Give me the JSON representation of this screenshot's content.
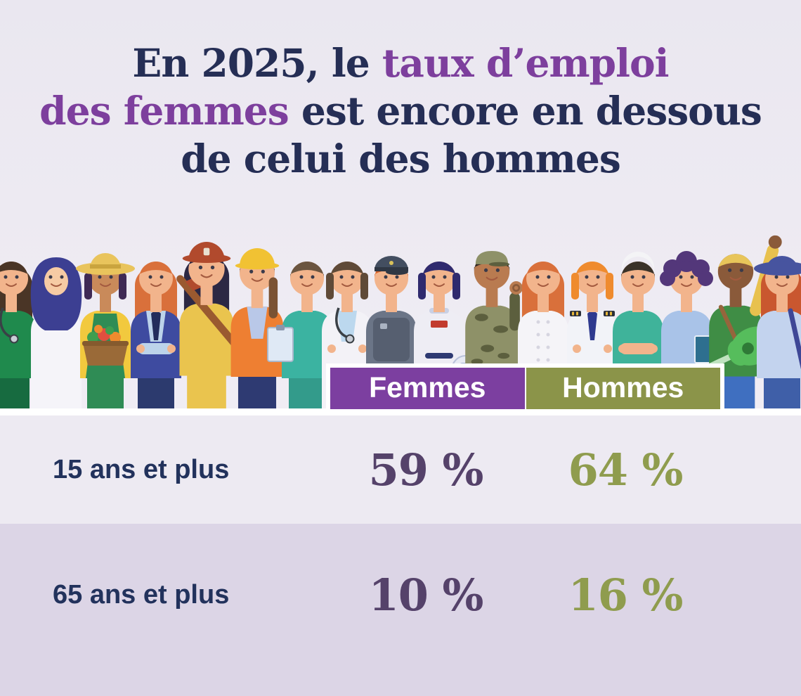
{
  "title": {
    "lines": [
      {
        "segments": [
          {
            "text": "En 2025, le ",
            "color": "navy"
          },
          {
            "text": "taux d’emploi",
            "color": "purple"
          }
        ]
      },
      {
        "segments": [
          {
            "text": "des femmes",
            "color": "purple"
          },
          {
            "text": " est encore en dessous",
            "color": "navy"
          }
        ]
      },
      {
        "segments": [
          {
            "text": "de celui des hommes",
            "color": "navy"
          }
        ]
      }
    ]
  },
  "legend": {
    "femmes": "Femmes",
    "hommes": "Hommes"
  },
  "table": {
    "rows": [
      {
        "label": "15 ans et plus",
        "femmes": "59 %",
        "hommes": "64 %"
      },
      {
        "label": "65 ans et plus",
        "femmes": "10 %",
        "hommes": "16 %"
      }
    ]
  },
  "chart_data": {
    "type": "table",
    "title": "En 2025, le taux d’emploi des femmes est encore en dessous de celui des hommes",
    "categories": [
      "15 ans et plus",
      "65 ans et plus"
    ],
    "series": [
      {
        "name": "Femmes",
        "values": [
          59,
          10
        ],
        "unit": "%",
        "color": "#7c3fa0"
      },
      {
        "name": "Hommes",
        "values": [
          64,
          16
        ],
        "unit": "%",
        "color": "#8b9449"
      }
    ],
    "legend_position": "top",
    "grid": false
  },
  "colors": {
    "navy": "#252e55",
    "purple": "#7d3f9d",
    "label": "#22325c",
    "femmes": "#7c3fa0",
    "hommes": "#8b9449",
    "val_femmes": "#55426a",
    "val_hommes": "#8f9c4e",
    "row1": "#edeaf2",
    "row2": "#dcd5e6",
    "page1": "#eae7f0",
    "floor": "#ffffff"
  },
  "illustration": {
    "description": "row of 17 workers of diverse professions standing side by side",
    "people": [
      {
        "profession": "veterinarian",
        "x": 16,
        "skin": "#f2b48c",
        "hair": "#4a3526",
        "hairstyle": "long",
        "top": "#1f8a4d",
        "pants": "#176b40",
        "props": [
          "stethoscope"
        ]
      },
      {
        "profession": "doctor-hijab",
        "x": 80,
        "skin": "#f6cba4",
        "hair": "#3c3f92",
        "hairstyle": "none",
        "top": "#f5f4f9",
        "pants": "#23262e",
        "torso": "coat",
        "hat": "hijab",
        "hatColor": "#3c3f92"
      },
      {
        "profession": "farmer",
        "x": 150,
        "skin": "#c98a5a",
        "hair": "#3f2a55",
        "hairstyle": "bob",
        "top": "#f2c93e",
        "pants": "#2f8c55",
        "hat": "straw",
        "hatColor": "#e9c45c",
        "apron": "#2f8c55",
        "props": [
          "basket"
        ]
      },
      {
        "profession": "security-agent",
        "x": 222,
        "skin": "#f2b48c",
        "hair": "#d9703b",
        "hairstyle": "long",
        "top": "#3e4ba0",
        "pants": "#2c3a6e",
        "shirt": "#bcd3ea",
        "sleeve": "#bcd3ea",
        "tie": "#232d5c",
        "props": [
          "tie",
          "crossedarms"
        ]
      },
      {
        "profession": "firefighter",
        "x": 294,
        "skin": "#f2b48c",
        "hair": "#2c2844",
        "hairstyle": "long",
        "top": "#eac44e",
        "pants": "#eac44e",
        "scale": 1.07,
        "hat": "firehelmet",
        "hatColor": "#b14a2d",
        "props": [
          "axe"
        ]
      },
      {
        "profession": "construction-worker",
        "x": 366,
        "skin": "#f2b48c",
        "hair": "#7a5233",
        "hairstyle": "ponytail",
        "top": "#ee7f32",
        "pants": "#2e3a72",
        "scale": 1.04,
        "hat": "hardhat",
        "hatColor": "#f1c233",
        "shirt": "#b9c8e8"
      },
      {
        "profession": "nurse",
        "x": 437,
        "skin": "#f2b48c",
        "hair": "#6b5540",
        "hairstyle": "short",
        "top": "#3bb3a1",
        "pants": "#339b8b",
        "props": [
          "clipboard"
        ]
      },
      {
        "profession": "doctor",
        "x": 494,
        "skin": "#f2b48c",
        "hair": "#5f4a38",
        "hairstyle": "bob",
        "top": "#f3f2f7",
        "pants": "#2e3a72",
        "torso": "coat",
        "shirt": "#bcd8ee",
        "sleeve": "#f3f2f7",
        "props": [
          "stethoscope",
          "crossedarms"
        ]
      },
      {
        "profession": "police-officer",
        "x": 557,
        "skin": "#f2b48c",
        "hair": "#d9632a",
        "hairstyle": "short",
        "top": "#6b7587",
        "pants": "#4c5568",
        "hat": "policecap",
        "hatColor": "#434e60",
        "props": [
          "vest"
        ]
      },
      {
        "profession": "astronaut",
        "x": 625,
        "skin": "#f2b48c",
        "hair": "#2f2a6e",
        "hairstyle": "bob",
        "top": "#eeedf4",
        "pants": "#e4e3ee",
        "accent": "#c23b2e",
        "props": [
          "astro",
          "helmet"
        ]
      },
      {
        "profession": "soldier",
        "x": 700,
        "skin": "#b97b50",
        "hair": "#2f2620",
        "hairstyle": "short",
        "top": "#8e9168",
        "pants": "#6e7150",
        "scale": 1.05,
        "hat": "militarycap",
        "hatColor": "#8e9168",
        "camo": "#5c5f3e",
        "props": [
          "camo",
          "okhand"
        ]
      },
      {
        "profession": "chef",
        "x": 773,
        "skin": "#f2b48c",
        "hair": "#d9703b",
        "hairstyle": "long",
        "top": "#f5f4f8",
        "pants": "#2e3a72",
        "torso": "coat",
        "props": [
          "buttons"
        ]
      },
      {
        "profession": "pilot",
        "x": 843,
        "skin": "#f2b48c",
        "hair": "#ef8b2e",
        "hairstyle": "bob",
        "top": "#f2f3f8",
        "pants": "#2e3a72",
        "tie": "#2f3a8f",
        "sleeve": "#f2f3f8",
        "props": [
          "tie",
          "epaulettes",
          "crossedarms"
        ]
      },
      {
        "profession": "athlete",
        "x": 908,
        "skin": "#f2b48c",
        "hair": "#3a3228",
        "hairstyle": "short",
        "top": "#3fb39a",
        "pants": "#3fb39a",
        "hat": "headband",
        "hatColor": "#f4f4f6",
        "props": [
          "crossedarms"
        ]
      },
      {
        "profession": "teacher",
        "x": 977,
        "skin": "#f2b48c",
        "hair": "#53377a",
        "hairstyle": "curly",
        "top": "#a9c3e8",
        "pants": "#2e3a72",
        "props": [
          "book"
        ]
      },
      {
        "profession": "musician",
        "x": 1047,
        "skin": "#8a5a3a",
        "hair": "#e8c55a",
        "hairstyle": "short",
        "top": "#3f8d45",
        "pants": "#3f6fc0",
        "sleeve": "#e8c14e",
        "scale": 1.05,
        "props": [
          "strap",
          "raisedarm",
          "guitar"
        ]
      },
      {
        "profession": "gardener",
        "x": 1113,
        "skin": "#f2b48c",
        "hair": "#c9572f",
        "hairstyle": "long",
        "top": "#c3d3ee",
        "pants": "#3f5fa8",
        "hat": "bluehat",
        "hatColor": "#47549f",
        "props": [
          "strap2"
        ]
      }
    ]
  }
}
